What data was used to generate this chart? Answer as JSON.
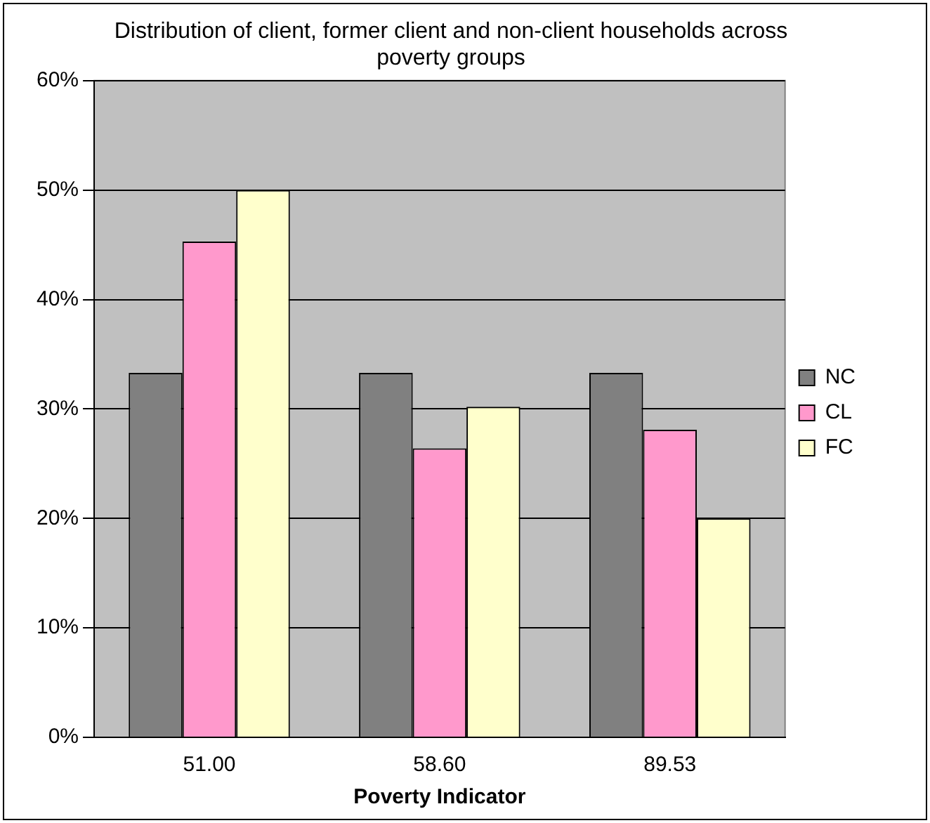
{
  "chart_data": {
    "type": "bar",
    "title": "Distribution of client, former client and non-client households across poverty groups",
    "xlabel": "Poverty Indicator",
    "categories": [
      "51.00",
      "58.60",
      "89.53"
    ],
    "series": [
      {
        "name": "NC",
        "color": "#808080",
        "values": [
          33.3,
          33.3,
          33.3
        ]
      },
      {
        "name": "CL",
        "color": "#ff99cc",
        "values": [
          45.3,
          26.4,
          28.1
        ]
      },
      {
        "name": "FC",
        "color": "#ffffcc",
        "values": [
          50.0,
          30.2,
          20.0
        ]
      }
    ],
    "ylim": [
      0,
      60
    ],
    "yticks": [
      {
        "value": 0,
        "label": "0%"
      },
      {
        "value": 10,
        "label": "10%"
      },
      {
        "value": 20,
        "label": "20%"
      },
      {
        "value": 30,
        "label": "30%"
      },
      {
        "value": 40,
        "label": "40%"
      },
      {
        "value": 50,
        "label": "50%"
      },
      {
        "value": 60,
        "label": "60%"
      }
    ],
    "grid": "y",
    "legend": "right"
  }
}
